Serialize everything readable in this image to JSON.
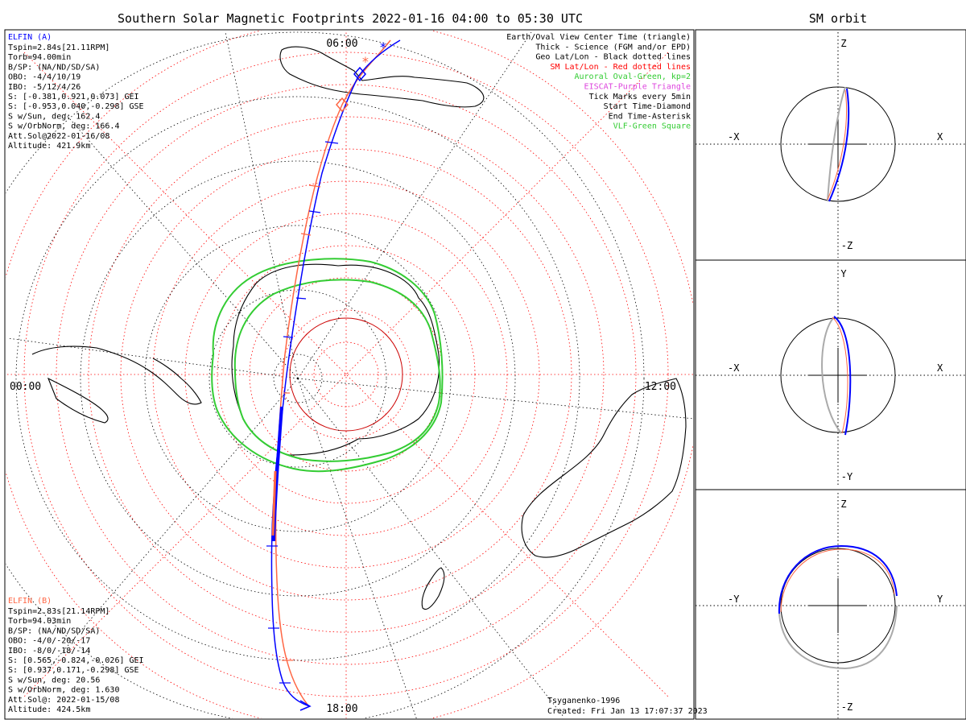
{
  "title": "Southern Solar Magnetic Footprints 2022-01-16 04:00 to 05:30 UTC",
  "orbit_title": "SM orbit",
  "hour_labels": {
    "top": "06:00",
    "left": "00:00",
    "right": "12:00",
    "bottom": "18:00"
  },
  "elfin_a": {
    "header": "ELFIN (A)",
    "lines": [
      "Tspin=2.84s[21.11RPM]",
      "Torb=94.00min",
      "B/SP: (NA/ND/SD/SA)",
      "OBO: -4/4/10/19",
      "IBO: -5/12/4/26",
      "S: [-0.381,0.921,0.073] GEI",
      "S: [-0.953,0.040,-0.298] GSE",
      "S w/Sun, deg: 162.4",
      "S w/OrbNorm, deg: 166.4",
      "Att.Sol@2022-01-16/08",
      "Altitude: 421.9km"
    ]
  },
  "elfin_b": {
    "header": "ELFIN (B)",
    "lines": [
      "Tspin=2.83s[21.14RPM]",
      "Torb=94.03min",
      "B/SP: (NA/ND/SD/SA)",
      "OBO: -4/0/-20/-17",
      "IBO: -8/0/-18/-14",
      "S: [0.565,-0.824,-0.026] GEI",
      "S: [0.937,0.171,-0.298] GSE",
      "S w/Sun, deg: 20.56",
      "S w/OrbNorm, deg: 1.630",
      "Att.Sol@: 2022-01-15/08",
      "Altitude: 424.5km"
    ]
  },
  "legend": [
    {
      "text": "Earth/Oval View Center Time (triangle)",
      "color": "#000000"
    },
    {
      "text": "Thick - Science (FGM and/or EPD)",
      "color": "#000000"
    },
    {
      "text": "Geo Lat/Lon - Black dotted lines",
      "color": "#000000"
    },
    {
      "text": "SM Lat/Lon - Red dotted lines",
      "color": "#ff0000"
    },
    {
      "text": "Auroral Oval-Green, kp=2",
      "color": "#33cc33"
    },
    {
      "text": "EISCAT-Purple Triangle",
      "color": "#dd44dd"
    },
    {
      "text": "Tick Marks every 5min",
      "color": "#000000"
    },
    {
      "text": "Start Time-Diamond",
      "color": "#000000"
    },
    {
      "text": "End Time-Asterisk",
      "color": "#000000"
    },
    {
      "text": "VLF-Green Square",
      "color": "#33cc33"
    }
  ],
  "footer": {
    "model": "Tsyganenko-1996",
    "created": "Created: Fri Jan 13 17:07:37 2023"
  },
  "panels": [
    {
      "up": "Z",
      "down": "-Z",
      "left": "-X",
      "right": "X"
    },
    {
      "up": "Y",
      "down": "-Y",
      "left": "-X",
      "right": "X"
    },
    {
      "up": "Z",
      "down": "-Z",
      "left": "-Y",
      "right": "Y"
    }
  ],
  "colors": {
    "elfin_a": "#0000ff",
    "elfin_b": "#ff6644",
    "oval": "#33cc33",
    "sm_grid": "#ff0000",
    "geo_grid": "#000000",
    "orbit_gray": "#aaaaaa"
  }
}
